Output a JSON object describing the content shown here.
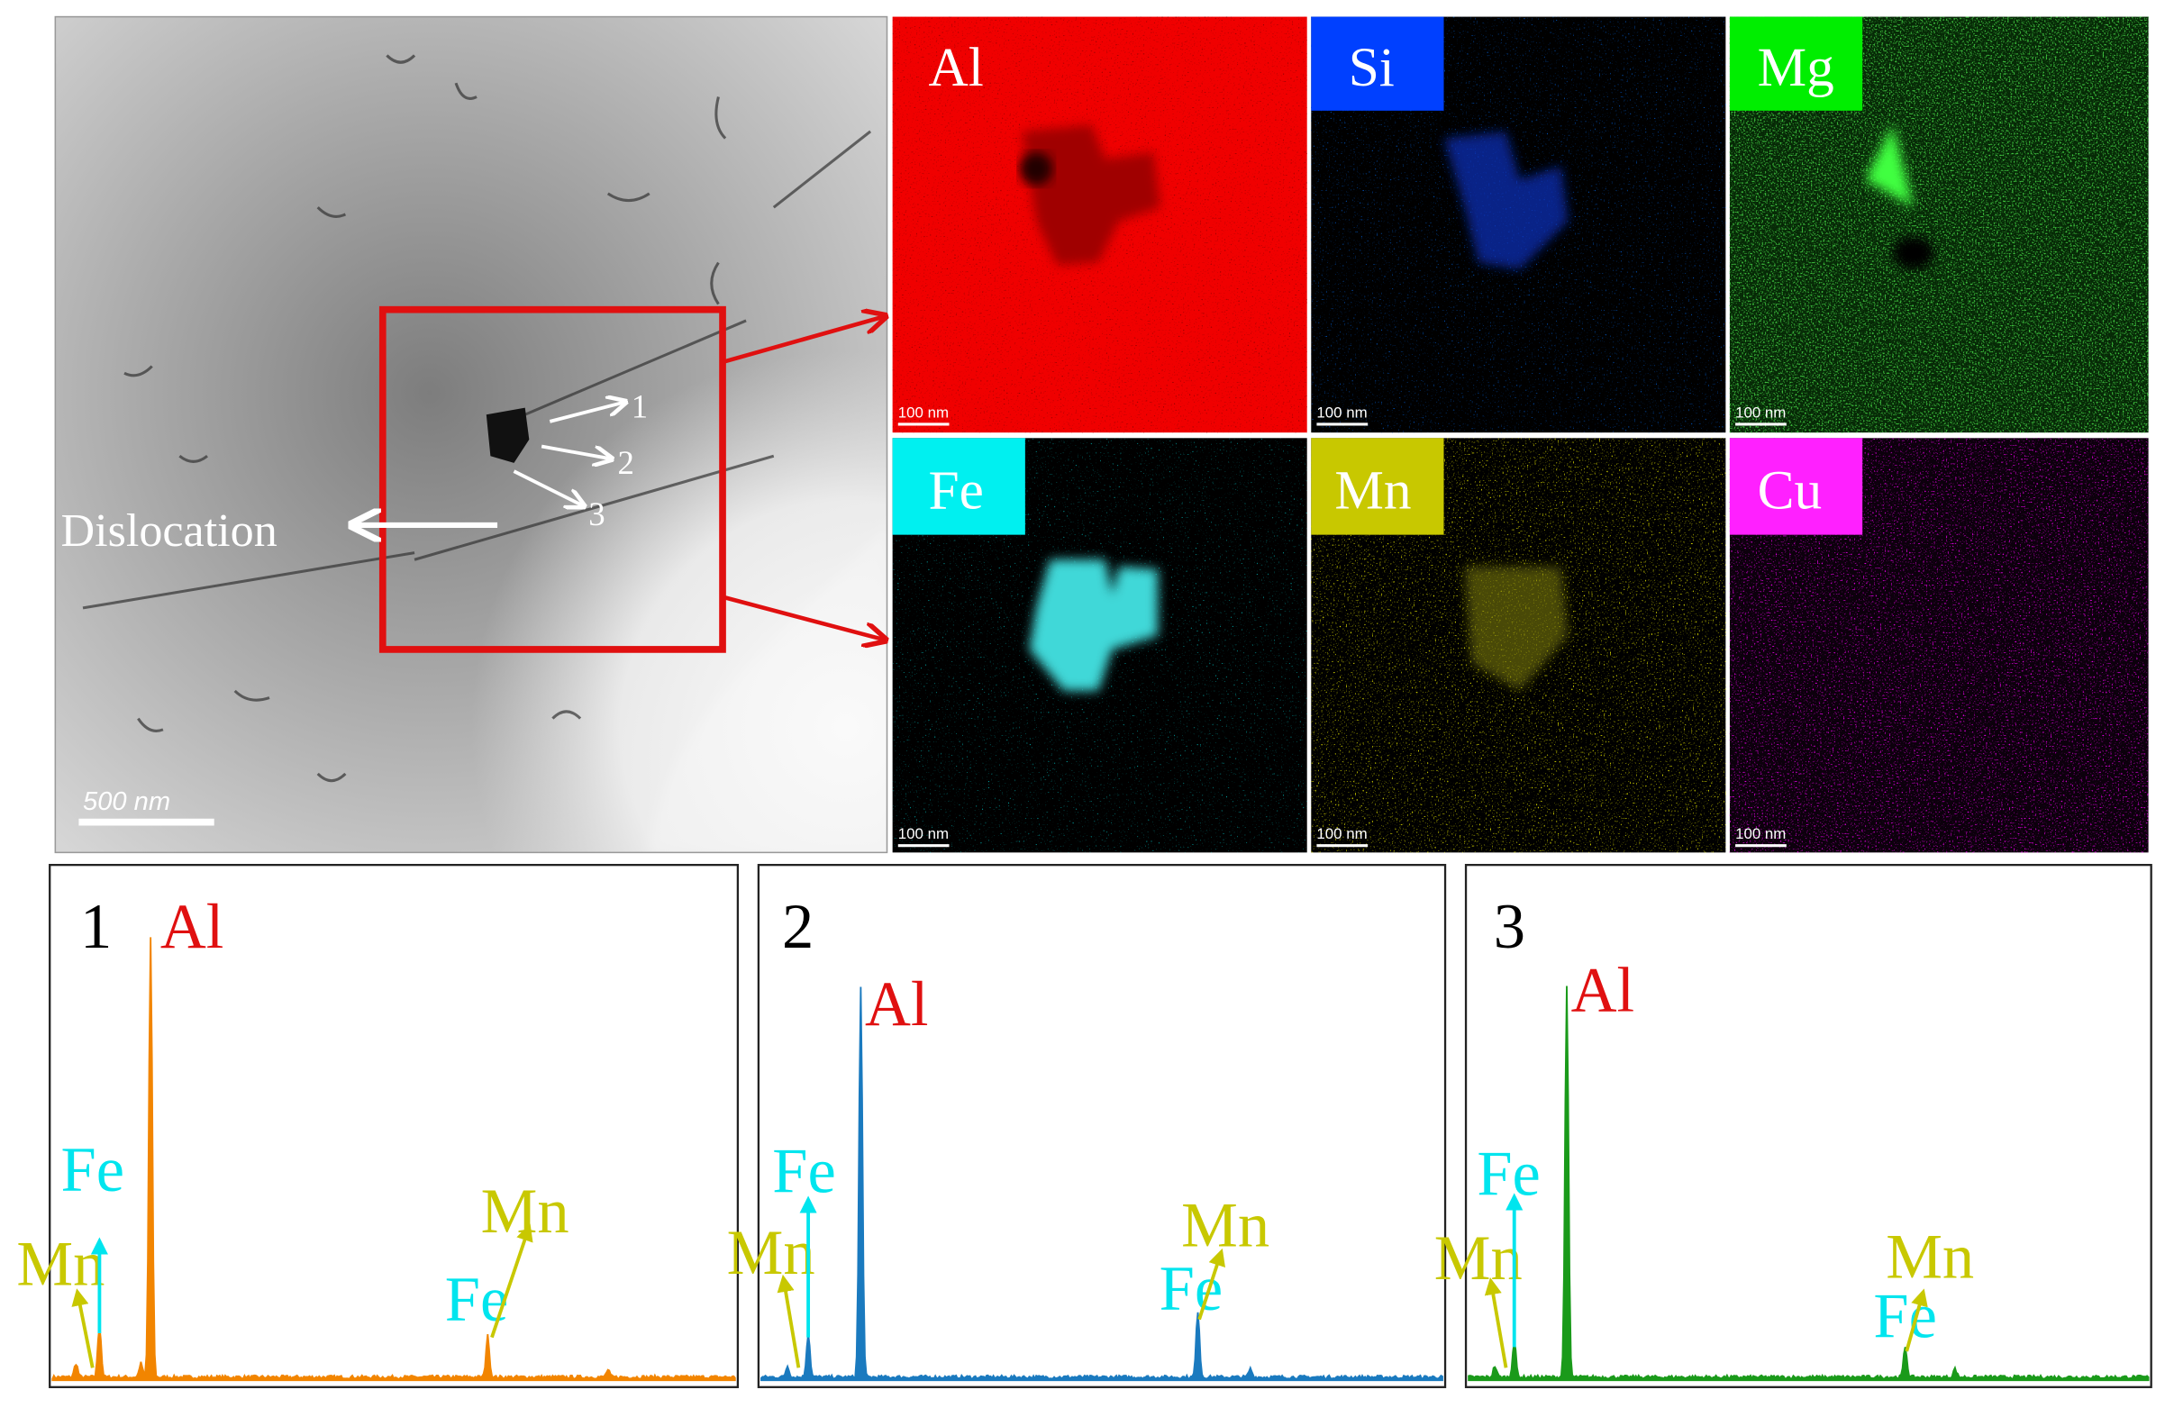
{
  "tem": {
    "label": "Dislocation",
    "scale_bar": "500 nm",
    "points": [
      "1",
      "2",
      "3"
    ]
  },
  "maps": [
    {
      "element": "Al",
      "scale_bar": "100 nm"
    },
    {
      "element": "Si",
      "scale_bar": "100 nm"
    },
    {
      "element": "Mg",
      "scale_bar": "100 nm"
    },
    {
      "element": "Fe",
      "scale_bar": "100 nm"
    },
    {
      "element": "Mn",
      "scale_bar": "100 nm"
    },
    {
      "element": "Cu",
      "scale_bar": "100 nm"
    }
  ],
  "spectra": [
    {
      "number": "1",
      "labels": [
        "Al",
        "Fe",
        "Mn",
        "Mn",
        "Fe"
      ]
    },
    {
      "number": "2",
      "labels": [
        "Al",
        "Fe",
        "Mn",
        "Mn",
        "Fe"
      ]
    },
    {
      "number": "3",
      "labels": [
        "Al",
        "Fe",
        "Mn",
        "Mn",
        "Fe"
      ]
    }
  ]
}
